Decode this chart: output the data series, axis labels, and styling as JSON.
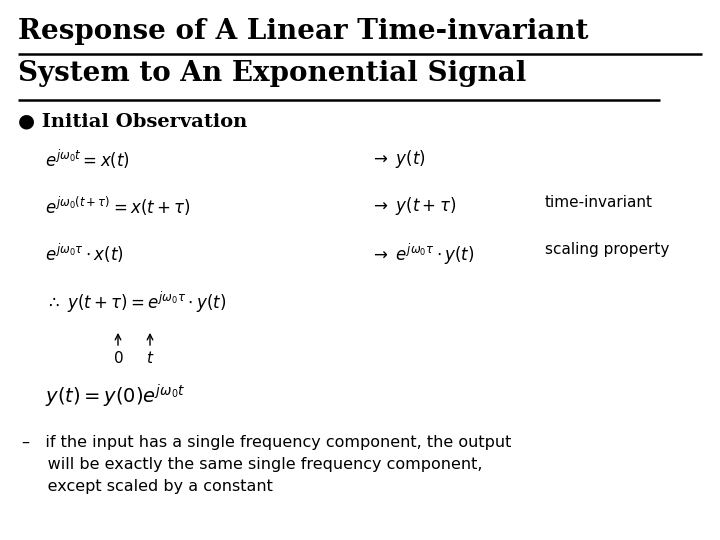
{
  "title_line1": "Response of A Linear Time-invariant",
  "title_line2": "System to An Exponential Signal",
  "bg_color": "#ffffff",
  "text_color": "#000000",
  "title_fontsize": 20,
  "bullet_text": "● Initial Observation",
  "bullet_fontsize": 14,
  "math_fontsize": 12,
  "note_fontsize": 11,
  "eq1_lhs": "$e^{j\\omega_0 t} = x(t)$",
  "eq1_rhs": "$\\rightarrow \\ y(t)$",
  "eq2_lhs": "$e^{j\\omega_0(t+\\tau)} = x(t+\\tau)$",
  "eq2_rhs": "$\\rightarrow \\ y(t+\\tau)$",
  "eq2_note": "time-invariant",
  "eq3_lhs": "$e^{j\\omega_0\\tau} \\cdot x(t)$",
  "eq3_rhs": "$\\rightarrow \\ e^{j\\omega_0\\tau} \\cdot y(t)$",
  "eq3_note": "scaling property",
  "eq4": "$\\therefore \\ y(t+\\tau) = e^{j\\omega_0\\tau} \\cdot y(t)$",
  "label0": "$0$",
  "label_t": "$t$",
  "eq5": "$y(t) = y(0)e^{j\\omega_0 t}$",
  "dash_line1": "–   if the input has a single frequency component, the output",
  "dash_line2": "     will be exactly the same single frequency component,",
  "dash_line3": "     except scaled by a constant"
}
